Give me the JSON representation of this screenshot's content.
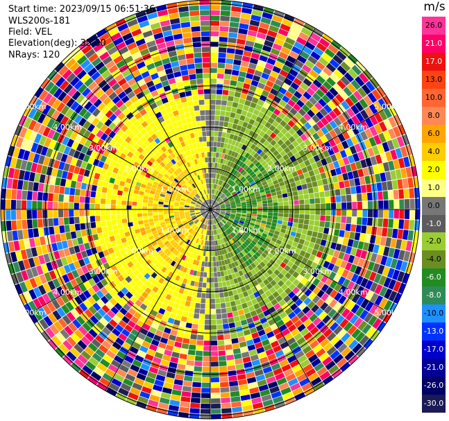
{
  "header": {
    "start_time": "Start time: 2023/09/15 06:51:36",
    "instrument": "WLS200s-181",
    "field": "Field: VEL",
    "elevation": "Elevation(deg): 35.30",
    "nrays": "NRays: 120"
  },
  "colorbar": {
    "unit": "m/s",
    "levels": [
      {
        "label": "26.0",
        "color": "#ff3399"
      },
      {
        "label": "21.0",
        "color": "#ff0066"
      },
      {
        "label": "17.0",
        "color": "#ee1111"
      },
      {
        "label": "13.0",
        "color": "#ff4411"
      },
      {
        "label": "10.0",
        "color": "#ff6633"
      },
      {
        "label": "8.0",
        "color": "#ff8855"
      },
      {
        "label": "6.0",
        "color": "#ffa500"
      },
      {
        "label": "4.0",
        "color": "#ffcc00"
      },
      {
        "label": "2.0",
        "color": "#ffff00"
      },
      {
        "label": "1.0",
        "color": "#ffff88"
      },
      {
        "label": "0.0",
        "color": "#777777"
      },
      {
        "label": "-1.0",
        "color": "#5c5c5c"
      },
      {
        "label": "-2.0",
        "color": "#9acd32"
      },
      {
        "label": "-4.0",
        "color": "#6b8e23"
      },
      {
        "label": "-6.0",
        "color": "#228b22"
      },
      {
        "label": "-8.0",
        "color": "#2e8b57"
      },
      {
        "label": "-10.0",
        "color": "#1e90ff"
      },
      {
        "label": "-13.0",
        "color": "#0033ff"
      },
      {
        "label": "-17.0",
        "color": "#0000cc"
      },
      {
        "label": "-21.0",
        "color": "#000099"
      },
      {
        "label": "-26.0",
        "color": "#000066"
      },
      {
        "label": "-30.0",
        "color": "#1a1a55"
      }
    ]
  },
  "chart_data": {
    "type": "heatmap",
    "projection": "polar (PPI scan)",
    "field": "VEL",
    "units": "m/s",
    "nrays": 120,
    "elevation_deg": 35.3,
    "range_ring_labels": [
      "1.00km",
      "2.00km",
      "3.00km",
      "4.00km",
      "5.00km"
    ],
    "range_rings_km": [
      1,
      2,
      3,
      4,
      5
    ],
    "color_range": [
      -30.0,
      26.0
    ],
    "grid": true,
    "pattern": {
      "near_range": "yellow/orange (+1 to +6 m/s) toward west, green (-2 to -6 m/s) toward east, gray (~0 m/s) at center",
      "far_range": "noisy multicolor speckle beyond ~3 km"
    }
  }
}
